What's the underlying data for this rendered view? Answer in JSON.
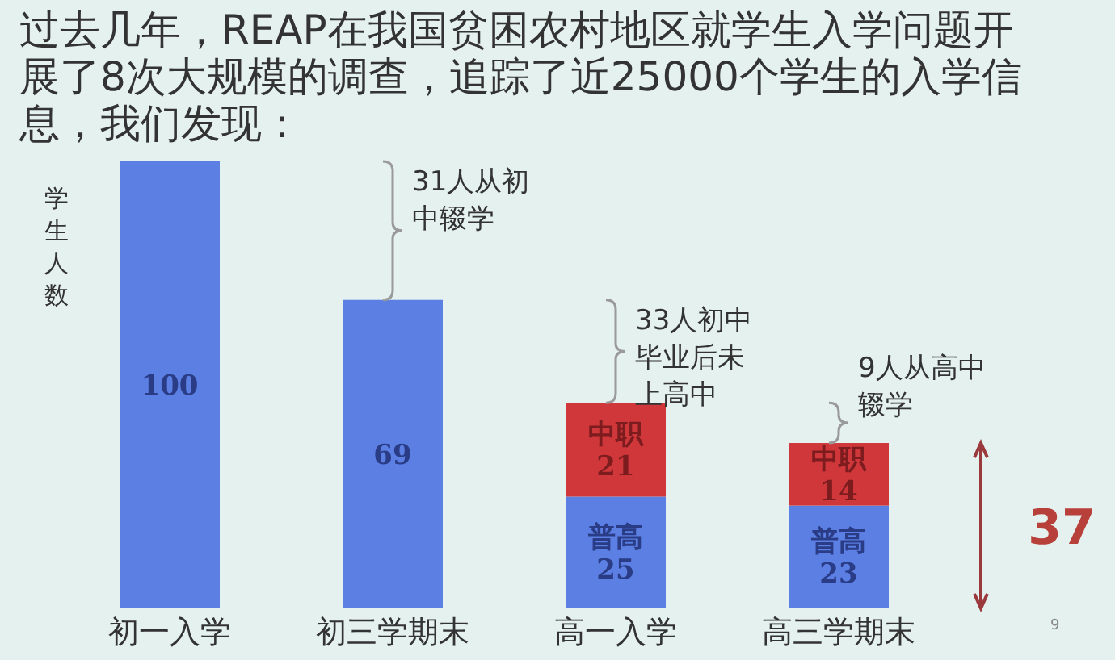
{
  "chart_data": {
    "type": "bar",
    "title": "过去几年，REAP在我国贫困农村地区就学生入学问题开展了8次大规模的调查，追踪了近25000个学生的入学信息，我们发现：",
    "ylabel": "学生人数",
    "categories": [
      "初一入学",
      "初三学期末",
      "高一入学",
      "高三学期末"
    ],
    "stacked": true,
    "data_labels": true,
    "series": [
      {
        "color": "#5b7fe3",
        "values": [
          100,
          69,
          null,
          null
        ]
      },
      {
        "name": "普高",
        "color": "#5b7fe3",
        "values": [
          null,
          null,
          25,
          23
        ]
      },
      {
        "name": "中职",
        "color": "#d0373a",
        "values": [
          null,
          null,
          21,
          14
        ]
      }
    ],
    "annotations": [
      {
        "text": "31人从初中辍学",
        "x": "初三学期末",
        "y": 69
      },
      {
        "text": "33人初中毕业后未上高中",
        "x": "高一入学",
        "y": 46
      },
      {
        "text": "9人从高中辍学",
        "x": "高三学期末",
        "y": 37
      },
      "37",
      "9"
    ]
  }
}
